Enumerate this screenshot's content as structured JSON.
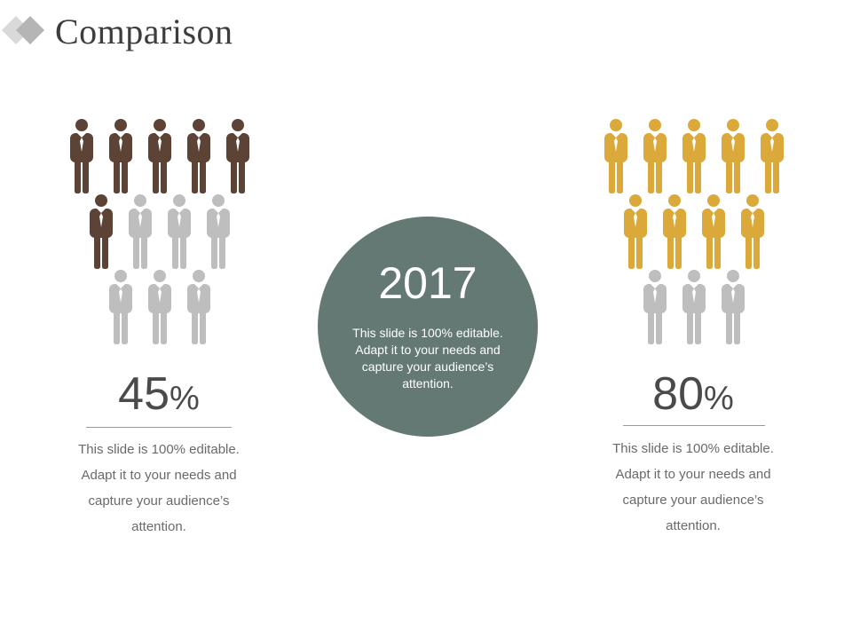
{
  "slide": {
    "title": "Comparison",
    "colors": {
      "logo_dark": "#b5b5b5",
      "logo_light": "#d9d9d9",
      "circle": "#647874",
      "inactive": "#bebebe"
    }
  },
  "left_panel": {
    "person_icon": "businessman-icon",
    "active_color": "#5c4336",
    "total_people": 12,
    "highlighted_people": 6,
    "percent_value": "45",
    "percent_sign": "%",
    "description": "This slide is 100% editable. Adapt it to your needs and capture your audience’s attention."
  },
  "center": {
    "year": "2017",
    "text": "This slide is 100% editable. Adapt it to your needs and capture your audience’s attention."
  },
  "right_panel": {
    "person_icon": "businessman-icon",
    "active_color": "#dba93a",
    "total_people": 12,
    "highlighted_people": 9,
    "percent_value": "80",
    "percent_sign": "%",
    "description": "This slide is 100% editable. Adapt it to your needs and capture your audience’s attention."
  }
}
